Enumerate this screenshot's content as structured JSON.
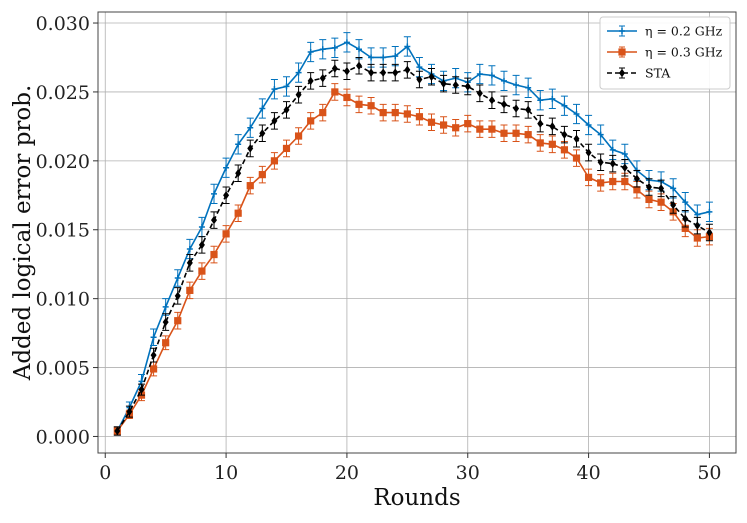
{
  "chart_data": {
    "type": "line",
    "title": "",
    "xlabel": "Rounds",
    "ylabel": "Added logical error prob.",
    "xlim": [
      -0.6,
      52.2
    ],
    "ylim": [
      -0.0012,
      0.0308
    ],
    "xticks": [
      0,
      10,
      20,
      30,
      40,
      50
    ],
    "xtick_labels": [
      "0",
      "10",
      "20",
      "30",
      "40",
      "50"
    ],
    "yticks": [
      0.0,
      0.005,
      0.01,
      0.015,
      0.02,
      0.025,
      0.03
    ],
    "ytick_labels": [
      "0.000",
      "0.005",
      "0.010",
      "0.015",
      "0.020",
      "0.025",
      "0.030"
    ],
    "grid": true,
    "legend_position": "top-right",
    "x": [
      1,
      2,
      3,
      4,
      5,
      6,
      7,
      8,
      9,
      10,
      11,
      12,
      13,
      14,
      15,
      16,
      17,
      18,
      19,
      20,
      21,
      22,
      23,
      24,
      25,
      26,
      27,
      28,
      29,
      30,
      31,
      32,
      33,
      34,
      35,
      36,
      37,
      38,
      39,
      40,
      41,
      42,
      43,
      44,
      45,
      46,
      47,
      48,
      49,
      50
    ],
    "series": [
      {
        "name": "η = 0.2 GHz",
        "legend_label": "η = 0.2 GHz",
        "color": "#0072BD",
        "marker": "plus",
        "line_style": "solid",
        "values": [
          0.0004,
          0.0021,
          0.004,
          0.0072,
          0.0094,
          0.0115,
          0.0136,
          0.0152,
          0.0176,
          0.0195,
          0.0212,
          0.0224,
          0.0238,
          0.0252,
          0.0254,
          0.0264,
          0.0279,
          0.0281,
          0.0282,
          0.0286,
          0.0281,
          0.0275,
          0.0275,
          0.0276,
          0.0283,
          0.0268,
          0.0263,
          0.0258,
          0.026,
          0.0257,
          0.0263,
          0.0262,
          0.0258,
          0.0255,
          0.0253,
          0.0244,
          0.0245,
          0.024,
          0.0234,
          0.0226,
          0.0219,
          0.0208,
          0.0205,
          0.0193,
          0.0186,
          0.0185,
          0.018,
          0.017,
          0.0161,
          0.0163
        ],
        "error": [
          0.0003,
          0.0004,
          0.0005,
          0.0006,
          0.0006,
          0.0006,
          0.0007,
          0.0007,
          0.0007,
          0.0007,
          0.0007,
          0.0007,
          0.0007,
          0.0007,
          0.0007,
          0.0007,
          0.0007,
          0.0007,
          0.0007,
          0.0007,
          0.0007,
          0.0007,
          0.0007,
          0.0007,
          0.0007,
          0.0007,
          0.0007,
          0.0007,
          0.0007,
          0.0007,
          0.0007,
          0.0007,
          0.0007,
          0.0007,
          0.0007,
          0.0007,
          0.0007,
          0.0007,
          0.0007,
          0.0007,
          0.0007,
          0.0007,
          0.0007,
          0.0007,
          0.0007,
          0.0007,
          0.0007,
          0.0007,
          0.0007,
          0.0007
        ]
      },
      {
        "name": "η = 0.3 GHz",
        "legend_label": "η = 0.3 GHz",
        "color": "#D95319",
        "marker": "square",
        "line_style": "solid",
        "values": [
          0.0004,
          0.0016,
          0.003,
          0.0049,
          0.0068,
          0.0084,
          0.0106,
          0.012,
          0.0132,
          0.0147,
          0.0162,
          0.0182,
          0.019,
          0.02,
          0.0209,
          0.0218,
          0.0229,
          0.0235,
          0.025,
          0.0246,
          0.0241,
          0.024,
          0.0235,
          0.0235,
          0.0234,
          0.0232,
          0.0228,
          0.0226,
          0.0224,
          0.0227,
          0.0223,
          0.0223,
          0.022,
          0.022,
          0.0219,
          0.0213,
          0.0212,
          0.0208,
          0.0202,
          0.0188,
          0.0184,
          0.0185,
          0.0185,
          0.0179,
          0.0172,
          0.017,
          0.0163,
          0.0151,
          0.0144,
          0.0145
        ],
        "error": [
          0.0003,
          0.0003,
          0.0004,
          0.0005,
          0.0005,
          0.0006,
          0.0006,
          0.0006,
          0.0006,
          0.0006,
          0.0006,
          0.0006,
          0.0006,
          0.0006,
          0.0006,
          0.0006,
          0.0006,
          0.0006,
          0.0006,
          0.0006,
          0.0006,
          0.0006,
          0.0006,
          0.0006,
          0.0006,
          0.0006,
          0.0006,
          0.0006,
          0.0006,
          0.0006,
          0.0006,
          0.0006,
          0.0006,
          0.0006,
          0.0006,
          0.0006,
          0.0006,
          0.0006,
          0.0006,
          0.0006,
          0.0006,
          0.0006,
          0.0006,
          0.0006,
          0.0006,
          0.0006,
          0.0006,
          0.0006,
          0.0006,
          0.0006
        ]
      },
      {
        "name": "STA",
        "legend_label": "STA",
        "color": "#000000",
        "marker": "diamond",
        "line_style": "dashed",
        "values": [
          0.0004,
          0.0018,
          0.0034,
          0.0059,
          0.0083,
          0.0102,
          0.0126,
          0.0139,
          0.0157,
          0.0175,
          0.0191,
          0.0209,
          0.022,
          0.0229,
          0.0237,
          0.0248,
          0.0258,
          0.026,
          0.0267,
          0.0265,
          0.0269,
          0.0264,
          0.0264,
          0.0264,
          0.0266,
          0.0259,
          0.0261,
          0.0256,
          0.0255,
          0.0254,
          0.0249,
          0.0244,
          0.0241,
          0.0238,
          0.0237,
          0.0227,
          0.0225,
          0.0219,
          0.0216,
          0.0206,
          0.0199,
          0.0198,
          0.0195,
          0.0187,
          0.0181,
          0.018,
          0.0168,
          0.0158,
          0.0153,
          0.0148
        ],
        "error": [
          0.0003,
          0.0004,
          0.0004,
          0.0005,
          0.0006,
          0.0006,
          0.0006,
          0.0006,
          0.0006,
          0.0006,
          0.0006,
          0.0006,
          0.0006,
          0.0006,
          0.0006,
          0.0006,
          0.0006,
          0.0006,
          0.0006,
          0.0006,
          0.0006,
          0.0006,
          0.0006,
          0.0006,
          0.0006,
          0.0006,
          0.0006,
          0.0006,
          0.0006,
          0.0006,
          0.0006,
          0.0006,
          0.0006,
          0.0006,
          0.0006,
          0.0006,
          0.0006,
          0.0006,
          0.0006,
          0.0006,
          0.0006,
          0.0006,
          0.0006,
          0.0006,
          0.0006,
          0.0006,
          0.0006,
          0.0006,
          0.0006,
          0.0006
        ]
      }
    ]
  }
}
